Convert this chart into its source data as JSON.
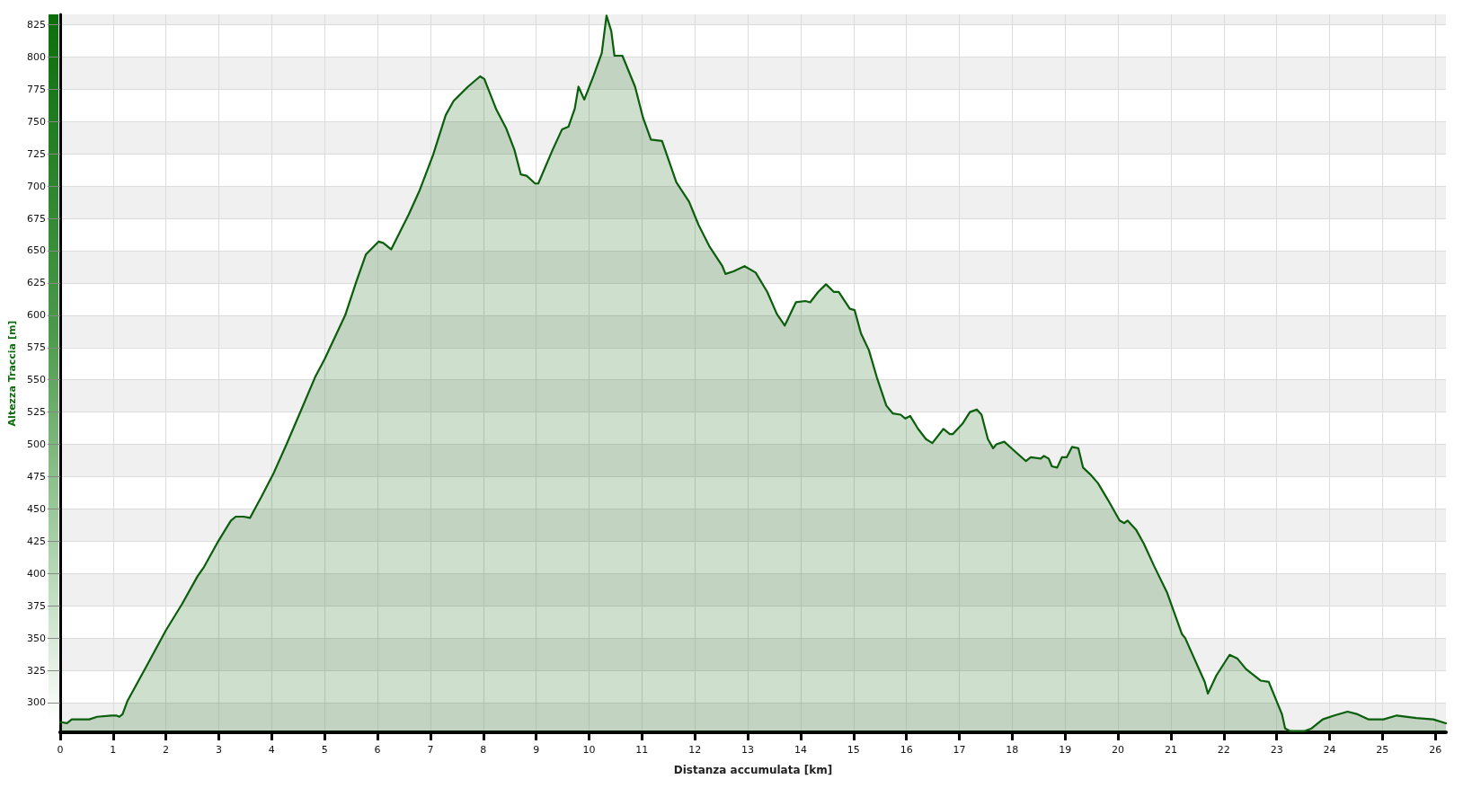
{
  "chart_data": {
    "type": "area",
    "xlabel": "Distanza accumulata [km]",
    "ylabel": "Altezza Traccia [m]",
    "x": [
      0,
      0.13,
      0.22,
      0.55,
      0.7,
      0.97,
      1.06,
      1.12,
      1.18,
      1.27,
      1.63,
      2,
      2.3,
      2.6,
      2.72,
      2.99,
      3.23,
      3.32,
      3.47,
      3.59,
      3.68,
      3.8,
      4.04,
      4.28,
      4.52,
      4.82,
      5,
      5.39,
      5.6,
      5.78,
      6.02,
      6.11,
      6.26,
      6.59,
      6.8,
      7.05,
      7.29,
      7.44,
      7.71,
      7.94,
      8.02,
      8.25,
      8.43,
      8.59,
      8.71,
      8.82,
      8.98,
      9.04,
      9.31,
      9.49,
      9.61,
      9.73,
      9.8,
      9.91,
      10.09,
      10.24,
      10.33,
      10.42,
      10.48,
      10.63,
      10.87,
      11.02,
      11.17,
      11.38,
      11.65,
      11.89,
      12.07,
      12.28,
      12.52,
      12.58,
      12.73,
      12.94,
      13.15,
      13.37,
      13.55,
      13.7,
      13.91,
      14.09,
      14.18,
      14.33,
      14.48,
      14.63,
      14.72,
      14.93,
      15.02,
      15.14,
      15.29,
      15.44,
      15.62,
      15.74,
      15.89,
      15.98,
      16.07,
      16.22,
      16.37,
      16.49,
      16.7,
      16.82,
      16.88,
      17.06,
      17.2,
      17.33,
      17.42,
      17.54,
      17.64,
      17.7,
      17.85,
      18.04,
      18.26,
      18.35,
      18.54,
      18.6,
      18.69,
      18.75,
      18.85,
      18.94,
      19.03,
      19.13,
      19.25,
      19.34,
      19.47,
      19.62,
      19.81,
      20.03,
      20.12,
      20.18,
      20.34,
      20.49,
      20.68,
      20.93,
      21.21,
      21.27,
      21.64,
      21.7,
      21.86,
      22.11,
      22.26,
      22.42,
      22.7,
      22.85,
      23.1,
      23.16,
      23.25,
      23.53,
      23.66,
      23.87,
      24.09,
      24.34,
      24.53,
      24.74,
      25.02,
      25.27,
      25.64,
      25.96,
      26.2
    ],
    "values": [
      285,
      284,
      287,
      287,
      289,
      290,
      290,
      289,
      291,
      301,
      328,
      356,
      376,
      398,
      405,
      425,
      441,
      444,
      444,
      443,
      450,
      459,
      478,
      500,
      523,
      552,
      566,
      600,
      626,
      647,
      657,
      656,
      651,
      678,
      697,
      724,
      755,
      766,
      777,
      785,
      783,
      759,
      745,
      728,
      709,
      708,
      702,
      702,
      728,
      744,
      746,
      760,
      777,
      767,
      786,
      803,
      832,
      820,
      801,
      801,
      777,
      753,
      736,
      735,
      703,
      688,
      670,
      653,
      638,
      632,
      634,
      638,
      633,
      618,
      601,
      592,
      610,
      611,
      610,
      618,
      624,
      618,
      618,
      605,
      604,
      586,
      573,
      552,
      530,
      524,
      523,
      520,
      522,
      512,
      504,
      501,
      512,
      508,
      508,
      516,
      525,
      527,
      523,
      504,
      497,
      500,
      502,
      495,
      487,
      490,
      489,
      491,
      489,
      483,
      482,
      490,
      490,
      498,
      497,
      482,
      477,
      470,
      457,
      441,
      439,
      441,
      434,
      423,
      406,
      385,
      353,
      350,
      316,
      307,
      321,
      337,
      334,
      326,
      317,
      316,
      291,
      280,
      278,
      278,
      280,
      287,
      290,
      293,
      291,
      287,
      287,
      290,
      288,
      287,
      284
    ],
    "color": "#0b5e0b",
    "xlim": [
      0,
      26.2
    ],
    "xticks": [
      0,
      1,
      2,
      3,
      4,
      5,
      6,
      7,
      8,
      9,
      10,
      11,
      12,
      13,
      14,
      15,
      16,
      17,
      18,
      19,
      20,
      21,
      22,
      23,
      24,
      25,
      26
    ],
    "ylim": [
      277,
      833
    ],
    "yticks": [
      300,
      325,
      350,
      375,
      400,
      425,
      450,
      475,
      500,
      525,
      550,
      575,
      600,
      625,
      650,
      675,
      700,
      725,
      750,
      775,
      800,
      825
    ],
    "grid": true,
    "marker": "none",
    "line_style": "solid"
  }
}
